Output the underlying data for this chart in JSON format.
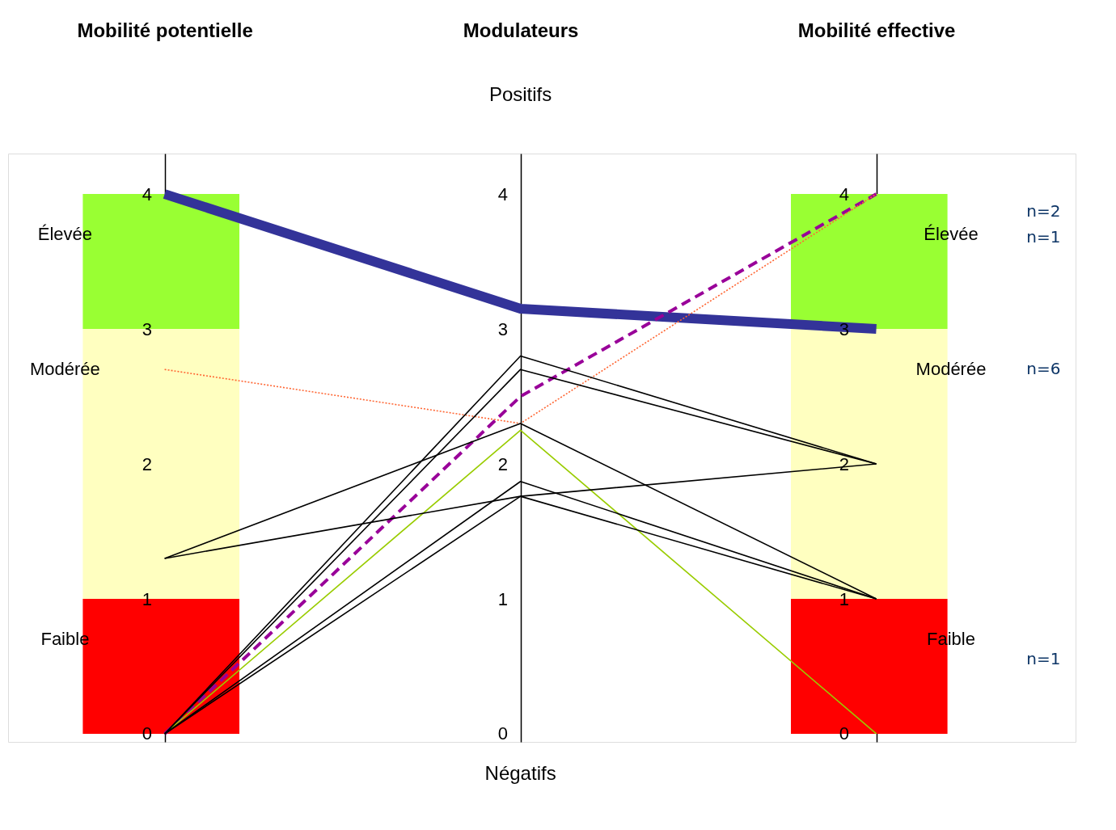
{
  "chart_data": {
    "type": "line",
    "categories": [
      "Mobilité potentielle",
      "Modulateurs",
      "Mobilité effective"
    ],
    "series": [
      {
        "type": "line",
        "color": "#333399",
        "values": [
          4,
          3.15,
          3.0
        ]
      },
      {
        "type": "line",
        "color": "#990099",
        "line_style": "dashed",
        "values": [
          0,
          2.5,
          4
        ]
      },
      {
        "type": "line",
        "color": "#ff6633",
        "line_style": "dotted",
        "values": [
          2.7,
          2.3,
          4
        ]
      },
      {
        "type": "line",
        "color": "#99cc00",
        "values": [
          0,
          2.25,
          0
        ]
      },
      {
        "type": "line",
        "color": "#000000",
        "values": [
          0,
          2.8,
          2
        ]
      },
      {
        "type": "line",
        "color": "#000000",
        "values": [
          0,
          2.7,
          2
        ]
      },
      {
        "type": "line",
        "color": "#000000",
        "values": [
          1.3,
          2.3,
          1
        ]
      },
      {
        "type": "line",
        "color": "#000000",
        "values": [
          1.3,
          1.76,
          2
        ]
      },
      {
        "type": "line",
        "color": "#000000",
        "values": [
          0,
          1.76,
          1
        ]
      },
      {
        "type": "line",
        "color": "#000000",
        "values": [
          0,
          1.87,
          1
        ]
      }
    ],
    "ylim": [
      -0.06,
      4.3
    ],
    "yticks": [
      0,
      1,
      2,
      3,
      4
    ],
    "y3lim": [
      -0.06,
      4.3
    ],
    "y3ticks": [
      0,
      1,
      2,
      3,
      4
    ],
    "y2lim": [
      -0.06,
      4.3
    ],
    "y2ticks": [
      0,
      1,
      2,
      3,
      4
    ],
    "grid": "x",
    "line_style": "solid",
    "bands": [
      {
        "axis": "y",
        "from": 3,
        "to": 4,
        "label": "Élevée",
        "color": "#99ff33"
      },
      {
        "axis": "y",
        "from": 1,
        "to": 3,
        "label": "Modérée",
        "color": "#ffffc0"
      },
      {
        "axis": "y",
        "from": 0,
        "to": 1,
        "label": "Faible",
        "color": "#ff0000"
      },
      {
        "axis": "y",
        "from": 3,
        "to": 4,
        "label": "Élevée",
        "color": "#99ff33"
      },
      {
        "axis": "y",
        "from": 1,
        "to": 3,
        "label": "Modérée",
        "color": "#ffffc0"
      },
      {
        "axis": "y",
        "from": 0,
        "to": 1,
        "label": "Faible",
        "color": "#ff0000"
      }
    ],
    "annotations": [
      "Positifs",
      "Négatifs",
      "n=2",
      "n=1",
      "n=6",
      "n=1"
    ]
  }
}
